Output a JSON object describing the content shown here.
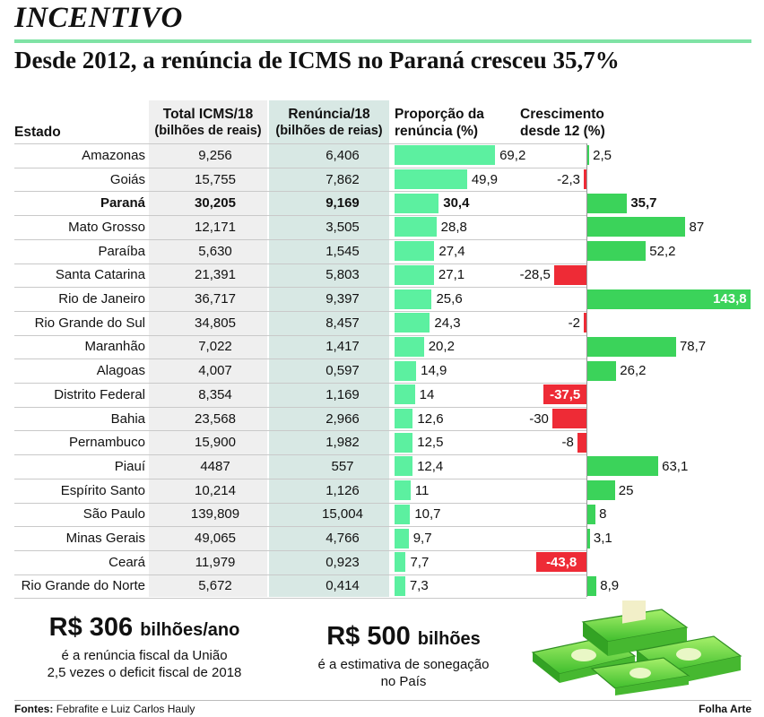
{
  "kicker": "INCENTIVO",
  "headline": "Desde 2012, a renúncia de ICMS no Paraná cresceu 35,7%",
  "table": {
    "headers": {
      "state": "Estado",
      "total_line1": "Total ICMS/18",
      "total_line2": "(bilhões de reais)",
      "renuncia_line1": "Renúncia/18",
      "renuncia_line2": "(bilhões de reias)",
      "proporcao_line1": "Proporção da",
      "proporcao_line2": "renúncia (%)",
      "crescimento_line1": "Crescimento",
      "crescimento_line2": "desde 12 (%)"
    }
  },
  "chart_data": {
    "type": "table",
    "columns": [
      "Estado",
      "Total ICMS/18 (bilhões de reais)",
      "Renúncia/18 (bilhões de reias)",
      "Proporção da renúncia (%)",
      "Crescimento desde 12 (%)"
    ],
    "rows": [
      {
        "state": "Amazonas",
        "total": "9,256",
        "renuncia": "6,406",
        "proporcao": 69.2,
        "proporcao_label": "69,2",
        "crescimento": 2.5,
        "crescimento_label": "2,5"
      },
      {
        "state": "Goiás",
        "total": "15,755",
        "renuncia": "7,862",
        "proporcao": 49.9,
        "proporcao_label": "49,9",
        "crescimento": -2.3,
        "crescimento_label": "-2,3"
      },
      {
        "state": "Paraná",
        "total": "30,205",
        "renuncia": "9,169",
        "proporcao": 30.4,
        "proporcao_label": "30,4",
        "crescimento": 35.7,
        "crescimento_label": "35,7",
        "highlight": true
      },
      {
        "state": "Mato Grosso",
        "total": "12,171",
        "renuncia": "3,505",
        "proporcao": 28.8,
        "proporcao_label": "28,8",
        "crescimento": 87,
        "crescimento_label": "87"
      },
      {
        "state": "Paraíba",
        "total": "5,630",
        "renuncia": "1,545",
        "proporcao": 27.4,
        "proporcao_label": "27,4",
        "crescimento": 52.2,
        "crescimento_label": "52,2"
      },
      {
        "state": "Santa Catarina",
        "total": "21,391",
        "renuncia": "5,803",
        "proporcao": 27.1,
        "proporcao_label": "27,1",
        "crescimento": -28.5,
        "crescimento_label": "-28,5"
      },
      {
        "state": "Rio de Janeiro",
        "total": "36,717",
        "renuncia": "9,397",
        "proporcao": 25.6,
        "proporcao_label": "25,6",
        "crescimento": 143.8,
        "crescimento_label": "143,8"
      },
      {
        "state": "Rio Grande do Sul",
        "total": "34,805",
        "renuncia": "8,457",
        "proporcao": 24.3,
        "proporcao_label": "24,3",
        "crescimento": -2,
        "crescimento_label": "-2"
      },
      {
        "state": "Maranhão",
        "total": "7,022",
        "renuncia": "1,417",
        "proporcao": 20.2,
        "proporcao_label": "20,2",
        "crescimento": 78.7,
        "crescimento_label": "78,7"
      },
      {
        "state": "Alagoas",
        "total": "4,007",
        "renuncia": "0,597",
        "proporcao": 14.9,
        "proporcao_label": "14,9",
        "crescimento": 26.2,
        "crescimento_label": "26,2"
      },
      {
        "state": "Distrito Federal",
        "total": "8,354",
        "renuncia": "1,169",
        "proporcao": 14,
        "proporcao_label": "14",
        "crescimento": -37.5,
        "crescimento_label": "-37,5"
      },
      {
        "state": "Bahia",
        "total": "23,568",
        "renuncia": "2,966",
        "proporcao": 12.6,
        "proporcao_label": "12,6",
        "crescimento": -30,
        "crescimento_label": "-30"
      },
      {
        "state": "Pernambuco",
        "total": "15,900",
        "renuncia": "1,982",
        "proporcao": 12.5,
        "proporcao_label": "12,5",
        "crescimento": -8,
        "crescimento_label": "-8"
      },
      {
        "state": "Piauí",
        "total": "4487",
        "renuncia": "557",
        "proporcao": 12.4,
        "proporcao_label": "12,4",
        "crescimento": 63.1,
        "crescimento_label": "63,1"
      },
      {
        "state": "Espírito Santo",
        "total": "10,214",
        "renuncia": "1,126",
        "proporcao": 11,
        "proporcao_label": "11",
        "crescimento": 25,
        "crescimento_label": "25"
      },
      {
        "state": "São Paulo",
        "total": "139,809",
        "renuncia": "15,004",
        "proporcao": 10.7,
        "proporcao_label": "10,7",
        "crescimento": 8,
        "crescimento_label": "8"
      },
      {
        "state": "Minas Gerais",
        "total": "49,065",
        "renuncia": "4,766",
        "proporcao": 9.7,
        "proporcao_label": "9,7",
        "crescimento": 3.1,
        "crescimento_label": "3,1"
      },
      {
        "state": "Ceará",
        "total": "11,979",
        "renuncia": "0,923",
        "proporcao": 7.7,
        "proporcao_label": "7,7",
        "crescimento": -43.8,
        "crescimento_label": "-43,8"
      },
      {
        "state": "Rio Grande do Norte",
        "total": "5,672",
        "renuncia": "0,414",
        "proporcao": 7.3,
        "proporcao_label": "7,3",
        "crescimento": 8.9,
        "crescimento_label": "8,9"
      }
    ]
  },
  "colors": {
    "positive_bar": "#3bd35a",
    "negative_bar": "#ee2b36",
    "proportion_bar": "#5cf0a0",
    "total_band": "#efefef",
    "renuncia_band": "#d8e8e4",
    "rule": "#7fe3a5"
  },
  "stats": {
    "left_value": "R$ 306",
    "left_unit": "bilhões/ano",
    "left_line1": "é a renúncia fiscal da União",
    "left_line2": "2,5 vezes o deficit fiscal de 2018",
    "right_value": "R$ 500",
    "right_unit": "bilhões",
    "right_line1": "é a estimativa de sonegação",
    "right_line2": "no País"
  },
  "illustration_icon": "money-stacks-icon",
  "footer": {
    "sources_label": "Fontes:",
    "sources": "Febrafite e Luiz Carlos Hauly",
    "credit": "Folha Arte"
  }
}
